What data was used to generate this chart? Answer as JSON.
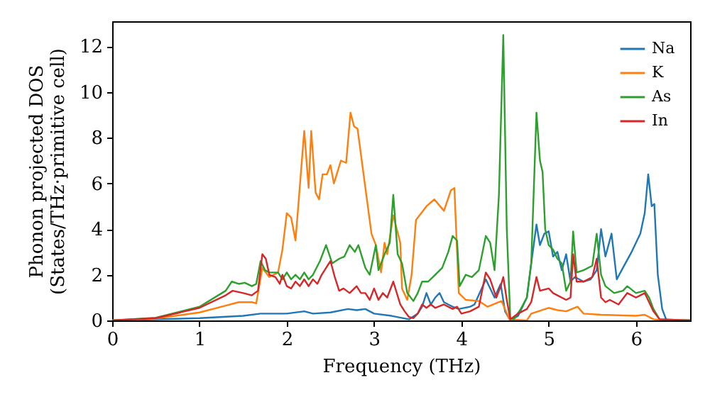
{
  "chart_data": {
    "type": "line",
    "xlabel": "Frequency (THz)",
    "ylabel": "Phonon projected DOS\n(States/THz·primitive cell)",
    "xlim": [
      0,
      6.62
    ],
    "ylim": [
      0,
      13.1
    ],
    "xticks": [
      0,
      1,
      2,
      3,
      4,
      5,
      6
    ],
    "yticks": [
      0,
      2,
      4,
      6,
      8,
      10,
      12
    ],
    "legend": "top right",
    "grid": false,
    "line_style": "solid",
    "marker": "none",
    "series": [
      {
        "name": "Na",
        "color": "#1f77b4",
        "x": [
          0,
          1.0,
          1.5,
          1.7,
          2.0,
          2.2,
          2.3,
          2.5,
          2.7,
          2.8,
          2.9,
          3.0,
          3.2,
          3.4,
          3.5,
          3.55,
          3.6,
          3.65,
          3.7,
          3.75,
          3.8,
          3.85,
          3.9,
          3.97,
          4.1,
          4.15,
          4.28,
          4.38,
          4.45,
          4.5,
          4.56,
          4.65,
          4.75,
          4.8,
          4.86,
          4.9,
          4.95,
          5.0,
          5.05,
          5.1,
          5.15,
          5.2,
          5.25,
          5.3,
          5.35,
          5.4,
          5.48,
          5.55,
          5.6,
          5.65,
          5.72,
          5.78,
          5.85,
          5.95,
          6.05,
          6.1,
          6.14,
          6.18,
          6.21,
          6.25,
          6.3,
          6.35,
          6.62
        ],
        "values": [
          0,
          0.1,
          0.2,
          0.3,
          0.3,
          0.4,
          0.3,
          0.35,
          0.5,
          0.45,
          0.5,
          0.3,
          0.2,
          0.05,
          0.3,
          0.6,
          1.2,
          0.7,
          1.0,
          1.2,
          0.8,
          0.7,
          0.6,
          0.5,
          0.6,
          0.7,
          1.8,
          1.0,
          1.6,
          0.4,
          0,
          0.2,
          1.0,
          2.5,
          4.2,
          3.3,
          3.8,
          3.9,
          2.8,
          3.0,
          2.2,
          2.9,
          1.7,
          1.9,
          1.8,
          1.7,
          1.8,
          2.2,
          4.0,
          2.8,
          3.8,
          1.8,
          2.3,
          3.0,
          3.8,
          4.7,
          6.4,
          5.0,
          5.1,
          2.0,
          0.5,
          0,
          0
        ]
      },
      {
        "name": "K",
        "color": "#ff7f0e",
        "x": [
          0,
          0.5,
          1.0,
          1.3,
          1.45,
          1.6,
          1.65,
          1.72,
          1.8,
          1.9,
          1.95,
          2.0,
          2.05,
          2.1,
          2.2,
          2.25,
          2.28,
          2.33,
          2.37,
          2.41,
          2.46,
          2.5,
          2.54,
          2.62,
          2.68,
          2.73,
          2.77,
          2.81,
          2.89,
          2.97,
          3.02,
          3.08,
          3.12,
          3.15,
          3.22,
          3.3,
          3.32,
          3.38,
          3.43,
          3.48,
          3.6,
          3.69,
          3.8,
          3.88,
          3.92,
          3.97,
          4.05,
          4.2,
          4.3,
          4.46,
          4.55,
          4.75,
          4.8,
          5.0,
          5.1,
          5.2,
          5.33,
          5.4,
          5.6,
          6.0,
          6.1,
          6.2,
          6.3,
          6.62
        ],
        "values": [
          0,
          0.08,
          0.35,
          0.65,
          0.8,
          0.8,
          0.75,
          2.3,
          1.9,
          2.1,
          3.1,
          4.7,
          4.5,
          3.5,
          8.3,
          5.8,
          8.3,
          5.6,
          5.3,
          6.4,
          6.4,
          6.8,
          6.0,
          7.0,
          6.9,
          9.1,
          8.5,
          8.4,
          6.1,
          3.8,
          3.3,
          2.1,
          3.4,
          2.9,
          4.6,
          3.4,
          1.4,
          0.9,
          2.0,
          4.4,
          5.0,
          5.3,
          4.8,
          5.7,
          5.8,
          1.2,
          0.9,
          0.85,
          0.6,
          0.85,
          0.05,
          0,
          0.3,
          0.55,
          0.45,
          0.4,
          0.6,
          0.3,
          0.25,
          0.2,
          0.25,
          0.05,
          0,
          0
        ]
      },
      {
        "name": "As",
        "color": "#2ca02c",
        "x": [
          0,
          0.5,
          1.0,
          1.3,
          1.37,
          1.45,
          1.52,
          1.6,
          1.65,
          1.7,
          1.75,
          1.8,
          1.9,
          1.95,
          2.0,
          2.05,
          2.1,
          2.15,
          2.2,
          2.25,
          2.3,
          2.38,
          2.45,
          2.52,
          2.6,
          2.66,
          2.72,
          2.78,
          2.82,
          2.9,
          2.95,
          3.02,
          3.05,
          3.12,
          3.18,
          3.22,
          3.27,
          3.32,
          3.38,
          3.45,
          3.5,
          3.55,
          3.62,
          3.7,
          3.78,
          3.85,
          3.9,
          3.95,
          3.98,
          4.05,
          4.12,
          4.2,
          4.28,
          4.33,
          4.38,
          4.43,
          4.48,
          4.52,
          4.56,
          4.6,
          4.68,
          4.75,
          4.8,
          4.86,
          4.9,
          4.93,
          4.96,
          5.0,
          5.05,
          5.1,
          5.15,
          5.2,
          5.25,
          5.28,
          5.32,
          5.4,
          5.5,
          5.55,
          5.6,
          5.65,
          5.75,
          5.85,
          5.9,
          6.0,
          6.1,
          6.15,
          6.2,
          6.27,
          6.62
        ],
        "values": [
          0,
          0.12,
          0.6,
          1.3,
          1.7,
          1.6,
          1.65,
          1.5,
          1.6,
          2.6,
          2.2,
          2.1,
          2.1,
          1.8,
          2.1,
          1.8,
          2.0,
          1.8,
          2.1,
          1.8,
          2.0,
          2.6,
          3.3,
          2.5,
          2.7,
          2.8,
          3.3,
          3.0,
          3.3,
          2.3,
          2.0,
          3.3,
          2.2,
          2.9,
          3.4,
          5.5,
          2.9,
          2.5,
          1.2,
          0.85,
          1.2,
          1.7,
          1.7,
          2.0,
          2.3,
          3.0,
          3.7,
          3.5,
          1.5,
          2.0,
          1.9,
          2.2,
          3.7,
          3.4,
          2.2,
          5.5,
          12.5,
          4.0,
          0.1,
          0.05,
          0.5,
          1.0,
          2.5,
          9.1,
          7.0,
          6.5,
          4.0,
          3.3,
          3.1,
          2.7,
          2.5,
          1.3,
          1.7,
          3.9,
          2.1,
          2.2,
          2.4,
          3.8,
          2.0,
          1.5,
          1.2,
          1.3,
          1.5,
          1.2,
          1.3,
          1.0,
          0.5,
          0.05,
          0
        ]
      },
      {
        "name": "In",
        "color": "#d62728",
        "x": [
          0,
          0.5,
          1.0,
          1.3,
          1.38,
          1.5,
          1.6,
          1.67,
          1.72,
          1.76,
          1.8,
          1.87,
          1.92,
          1.95,
          2.0,
          2.05,
          2.1,
          2.15,
          2.2,
          2.25,
          2.3,
          2.35,
          2.4,
          2.45,
          2.5,
          2.55,
          2.6,
          2.65,
          2.72,
          2.8,
          2.85,
          2.9,
          2.95,
          3.0,
          3.05,
          3.1,
          3.15,
          3.22,
          3.3,
          3.35,
          3.4,
          3.45,
          3.5,
          3.55,
          3.6,
          3.65,
          3.7,
          3.8,
          3.9,
          3.95,
          4.0,
          4.1,
          4.2,
          4.28,
          4.33,
          4.4,
          4.45,
          4.48,
          4.52,
          4.56,
          4.65,
          4.75,
          4.8,
          4.86,
          4.9,
          5.0,
          5.05,
          5.1,
          5.2,
          5.25,
          5.28,
          5.32,
          5.4,
          5.5,
          5.55,
          5.6,
          5.65,
          5.7,
          5.8,
          5.9,
          6.0,
          6.1,
          6.15,
          6.2,
          6.27,
          6.62
        ],
        "values": [
          0,
          0.1,
          0.55,
          1.1,
          1.3,
          1.2,
          1.1,
          1.3,
          2.9,
          2.7,
          2.0,
          1.9,
          1.6,
          2.0,
          1.5,
          1.4,
          1.7,
          1.5,
          1.8,
          1.5,
          1.8,
          1.6,
          2.0,
          2.3,
          2.6,
          1.9,
          1.3,
          1.4,
          1.2,
          1.5,
          1.2,
          1.2,
          0.9,
          1.4,
          0.9,
          1.2,
          1.0,
          1.7,
          0.7,
          0.4,
          0.15,
          0.1,
          0.3,
          0.7,
          0.55,
          0.7,
          0.55,
          0.7,
          0.5,
          0.6,
          0.3,
          0.4,
          0.6,
          2.1,
          1.8,
          1.0,
          1.5,
          1.9,
          0.9,
          0.05,
          0.3,
          0.5,
          0.8,
          1.9,
          1.3,
          1.4,
          1.2,
          1.1,
          0.9,
          1.0,
          2.9,
          1.7,
          1.7,
          1.9,
          2.7,
          1.0,
          0.8,
          0.9,
          0.7,
          1.2,
          1.0,
          1.2,
          0.8,
          0.4,
          0.05,
          0
        ]
      }
    ]
  }
}
